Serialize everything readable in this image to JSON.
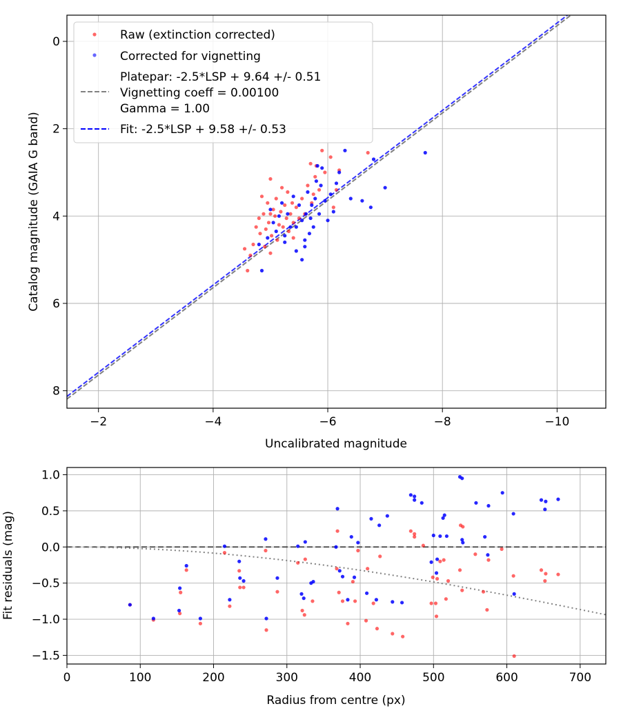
{
  "chart_data": [
    {
      "type": "scatter",
      "title": "",
      "xlabel": "Uncalibrated magnitude",
      "ylabel": "Catalog magnitude (GAIA G band)",
      "xlim": [
        -1.45,
        -10.85
      ],
      "ylim": [
        8.4,
        -0.6
      ],
      "x_inverted": true,
      "y_inverted": true,
      "grid": true,
      "legend_placement": "upper-left",
      "xticks": [
        -2,
        -4,
        -6,
        -8,
        -10
      ],
      "xtick_labels": [
        "−2",
        "−4",
        "−6",
        "−8",
        "−10"
      ],
      "yticks": [
        0,
        2,
        4,
        6,
        8
      ],
      "ytick_labels": [
        "0",
        "2",
        "4",
        "6",
        "8"
      ],
      "legend": [
        {
          "label": "Raw (extinction corrected)",
          "kind": "marker",
          "color": "#ff0000"
        },
        {
          "label": "Corrected for vignetting",
          "kind": "marker",
          "color": "#0000ff"
        },
        {
          "label": "Platepar: -2.5*LSP + 9.64 +/- 0.51\nVignetting coeff = 0.00100\nGamma = 1.00",
          "kind": "dashed-line",
          "color": "#808080"
        },
        {
          "label": "Fit: -2.5*LSP + 9.58 +/- 0.53",
          "kind": "dashed-line",
          "color": "#0000ff"
        }
      ],
      "lines": [
        {
          "name": "Platepar",
          "slope": -2.5,
          "intercept": 9.64,
          "color": "#808080",
          "dash": "dashed"
        },
        {
          "name": "Fit",
          "slope": -2.5,
          "intercept": 9.58,
          "color": "#0000ff",
          "dash": "dashed"
        }
      ],
      "series": [
        {
          "name": "Raw (extinction corrected)",
          "color": "#ff0000",
          "points": [
            [
              -4.55,
              4.75
            ],
            [
              -4.6,
              5.25
            ],
            [
              -4.7,
              4.65
            ],
            [
              -4.75,
              4.25
            ],
            [
              -4.8,
              4.05
            ],
            [
              -4.82,
              4.4
            ],
            [
              -4.85,
              3.55
            ],
            [
              -4.88,
              3.95
            ],
            [
              -4.9,
              4.7
            ],
            [
              -4.92,
              4.3
            ],
            [
              -4.95,
              3.7
            ],
            [
              -4.97,
              4.15
            ],
            [
              -5.0,
              3.15
            ],
            [
              -5.0,
              4.85
            ],
            [
              -5.02,
              4.45
            ],
            [
              -5.05,
              3.85
            ],
            [
              -5.08,
              4.0
            ],
            [
              -5.1,
              3.6
            ],
            [
              -5.12,
              4.55
            ],
            [
              -5.15,
              4.2
            ],
            [
              -5.18,
              3.9
            ],
            [
              -5.2,
              3.35
            ],
            [
              -5.22,
              4.25
            ],
            [
              -5.25,
              3.75
            ],
            [
              -5.28,
              4.05
            ],
            [
              -5.3,
              3.45
            ],
            [
              -5.32,
              4.35
            ],
            [
              -5.35,
              3.95
            ],
            [
              -5.38,
              3.7
            ],
            [
              -5.4,
              4.15
            ],
            [
              -5.45,
              3.8
            ],
            [
              -5.5,
              4.05
            ],
            [
              -5.55,
              3.6
            ],
            [
              -5.6,
              3.95
            ],
            [
              -5.65,
              3.3
            ],
            [
              -5.7,
              2.8
            ],
            [
              -5.72,
              3.7
            ],
            [
              -5.75,
              3.5
            ],
            [
              -5.78,
              3.1
            ],
            [
              -5.8,
              2.85
            ],
            [
              -5.85,
              3.4
            ],
            [
              -5.9,
              2.5
            ],
            [
              -5.95,
              3.0
            ],
            [
              -6.05,
              2.65
            ],
            [
              -6.1,
              3.8
            ],
            [
              -6.15,
              3.4
            ],
            [
              -6.2,
              2.95
            ],
            [
              -6.7,
              2.55
            ],
            [
              -4.65,
              4.9
            ],
            [
              -5.4,
              4.5
            ],
            [
              -5.0,
              3.95
            ]
          ]
        },
        {
          "name": "Corrected for vignetting",
          "color": "#0000ff",
          "points": [
            [
              -4.8,
              4.65
            ],
            [
              -4.85,
              5.25
            ],
            [
              -4.95,
              4.5
            ],
            [
              -5.0,
              3.85
            ],
            [
              -5.05,
              4.15
            ],
            [
              -5.1,
              4.35
            ],
            [
              -5.15,
              4.0
            ],
            [
              -5.2,
              3.7
            ],
            [
              -5.25,
              4.45
            ],
            [
              -5.3,
              3.95
            ],
            [
              -5.35,
              4.25
            ],
            [
              -5.4,
              3.55
            ],
            [
              -5.45,
              4.8
            ],
            [
              -5.5,
              3.75
            ],
            [
              -5.55,
              4.1
            ],
            [
              -5.6,
              4.55
            ],
            [
              -5.62,
              3.95
            ],
            [
              -5.65,
              3.45
            ],
            [
              -5.68,
              4.4
            ],
            [
              -5.7,
              4.05
            ],
            [
              -5.72,
              3.75
            ],
            [
              -5.75,
              4.25
            ],
            [
              -5.78,
              3.6
            ],
            [
              -5.8,
              3.2
            ],
            [
              -5.82,
              2.85
            ],
            [
              -5.85,
              3.95
            ],
            [
              -5.88,
              3.3
            ],
            [
              -5.9,
              2.9
            ],
            [
              -5.95,
              3.65
            ],
            [
              -6.0,
              4.1
            ],
            [
              -6.05,
              3.5
            ],
            [
              -6.1,
              3.9
            ],
            [
              -6.15,
              3.25
            ],
            [
              -6.2,
              3.0
            ],
            [
              -6.3,
              2.5
            ],
            [
              -6.4,
              3.6
            ],
            [
              -6.6,
              3.65
            ],
            [
              -6.75,
              3.8
            ],
            [
              -6.8,
              2.7
            ],
            [
              -7.0,
              3.35
            ],
            [
              -7.7,
              2.55
            ],
            [
              -5.55,
              5.0
            ],
            [
              -5.25,
              4.6
            ],
            [
              -5.45,
              4.25
            ],
            [
              -5.6,
              4.7
            ]
          ]
        }
      ]
    },
    {
      "type": "scatter",
      "title": "",
      "xlabel": "Radius from centre (px)",
      "ylabel": "Fit residuals (mag)",
      "xlim": [
        0,
        735
      ],
      "ylim": [
        -1.62,
        1.1
      ],
      "grid": true,
      "xticks": [
        0,
        100,
        200,
        300,
        400,
        500,
        600,
        700
      ],
      "xtick_labels": [
        "0",
        "100",
        "200",
        "300",
        "400",
        "500",
        "600",
        "700"
      ],
      "yticks": [
        1.0,
        0.5,
        0.0,
        -0.5,
        -1.0,
        -1.5
      ],
      "ytick_labels": [
        "1.0",
        "0.5",
        "0.0",
        "−0.5",
        "−1.0",
        "−1.5"
      ],
      "reference_line": {
        "y": 0,
        "color": "#000000",
        "dash": "dashed"
      },
      "vignetting_curve": {
        "coeff": 0.001,
        "color": "#808080",
        "dash": "dotted",
        "description": "-2.5*log10(cos^4(atan(coeff*r)))"
      },
      "series": [
        {
          "name": "Raw",
          "color": "#ff0000",
          "points": [
            [
              86,
              -0.8
            ],
            [
              118,
              -1.01
            ],
            [
              154,
              -0.92
            ],
            [
              155,
              -0.63
            ],
            [
              163,
              -0.32
            ],
            [
              182,
              -1.06
            ],
            [
              215,
              -0.08
            ],
            [
              222,
              -0.82
            ],
            [
              235,
              -0.33
            ],
            [
              236,
              -0.56
            ],
            [
              241,
              -0.56
            ],
            [
              271,
              -0.05
            ],
            [
              272,
              -1.15
            ],
            [
              287,
              -0.62
            ],
            [
              315,
              -0.22
            ],
            [
              321,
              -0.88
            ],
            [
              324,
              -0.94
            ],
            [
              325,
              -0.17
            ],
            [
              335,
              -0.75
            ],
            [
              368,
              -0.3
            ],
            [
              369,
              0.22
            ],
            [
              371,
              -0.63
            ],
            [
              376,
              -0.75
            ],
            [
              383,
              -1.06
            ],
            [
              390,
              -0.48
            ],
            [
              393,
              -0.75
            ],
            [
              397,
              -0.05
            ],
            [
              408,
              -1.02
            ],
            [
              410,
              -0.3
            ],
            [
              418,
              -0.78
            ],
            [
              423,
              -1.13
            ],
            [
              427,
              -0.13
            ],
            [
              444,
              -1.2
            ],
            [
              458,
              -1.24
            ],
            [
              469,
              0.22
            ],
            [
              474,
              0.18
            ],
            [
              474,
              0.14
            ],
            [
              486,
              0.02
            ],
            [
              497,
              -0.78
            ],
            [
              499,
              -0.42
            ],
            [
              503,
              -0.78
            ],
            [
              504,
              -0.96
            ],
            [
              509,
              -0.2
            ],
            [
              514,
              -0.18
            ],
            [
              517,
              -0.72
            ],
            [
              520,
              -0.47
            ],
            [
              536,
              -0.32
            ],
            [
              537,
              0.3
            ],
            [
              539,
              -0.6
            ],
            [
              540,
              0.28
            ],
            [
              557,
              -0.1
            ],
            [
              568,
              -0.62
            ],
            [
              573,
              -0.87
            ],
            [
              575,
              -0.18
            ],
            [
              593,
              -0.03
            ],
            [
              609,
              -0.4
            ],
            [
              610,
              -1.51
            ],
            [
              647,
              -0.32
            ],
            [
              653,
              -0.37
            ],
            [
              652,
              -0.47
            ],
            [
              670,
              -0.38
            ],
            [
              505,
              -0.44
            ]
          ]
        },
        {
          "name": "Corrected",
          "color": "#0000ff",
          "points": [
            [
              86,
              -0.8
            ],
            [
              118,
              -0.99
            ],
            [
              153,
              -0.88
            ],
            [
              154,
              -0.57
            ],
            [
              163,
              -0.26
            ],
            [
              182,
              -0.99
            ],
            [
              215,
              0.01
            ],
            [
              222,
              -0.73
            ],
            [
              235,
              -0.2
            ],
            [
              236,
              -0.43
            ],
            [
              241,
              -0.47
            ],
            [
              271,
              0.11
            ],
            [
              272,
              -0.99
            ],
            [
              287,
              -0.43
            ],
            [
              315,
              0.01
            ],
            [
              320,
              -0.65
            ],
            [
              323,
              -0.71
            ],
            [
              325,
              0.07
            ],
            [
              333,
              -0.5
            ],
            [
              336,
              -0.48
            ],
            [
              367,
              0.0
            ],
            [
              369,
              0.53
            ],
            [
              372,
              -0.33
            ],
            [
              376,
              -0.41
            ],
            [
              383,
              -0.73
            ],
            [
              388,
              0.14
            ],
            [
              392,
              -0.42
            ],
            [
              397,
              0.06
            ],
            [
              409,
              -0.64
            ],
            [
              415,
              0.39
            ],
            [
              422,
              -0.73
            ],
            [
              426,
              0.3
            ],
            [
              437,
              0.43
            ],
            [
              444,
              -0.76
            ],
            [
              457,
              -0.77
            ],
            [
              469,
              0.72
            ],
            [
              474,
              0.65
            ],
            [
              474,
              0.7
            ],
            [
              484,
              0.61
            ],
            [
              497,
              -0.21
            ],
            [
              500,
              0.16
            ],
            [
              504,
              -0.36
            ],
            [
              505,
              -0.17
            ],
            [
              509,
              0.15
            ],
            [
              513,
              0.4
            ],
            [
              515,
              0.44
            ],
            [
              518,
              0.15
            ],
            [
              536,
              0.97
            ],
            [
              539,
              0.95
            ],
            [
              539,
              0.1
            ],
            [
              540,
              0.06
            ],
            [
              558,
              0.61
            ],
            [
              570,
              0.14
            ],
            [
              574,
              -0.11
            ],
            [
              575,
              0.57
            ],
            [
              594,
              0.75
            ],
            [
              609,
              0.46
            ],
            [
              610,
              -0.65
            ],
            [
              647,
              0.65
            ],
            [
              652,
              0.52
            ],
            [
              653,
              0.63
            ],
            [
              670,
              0.66
            ]
          ]
        }
      ]
    }
  ]
}
